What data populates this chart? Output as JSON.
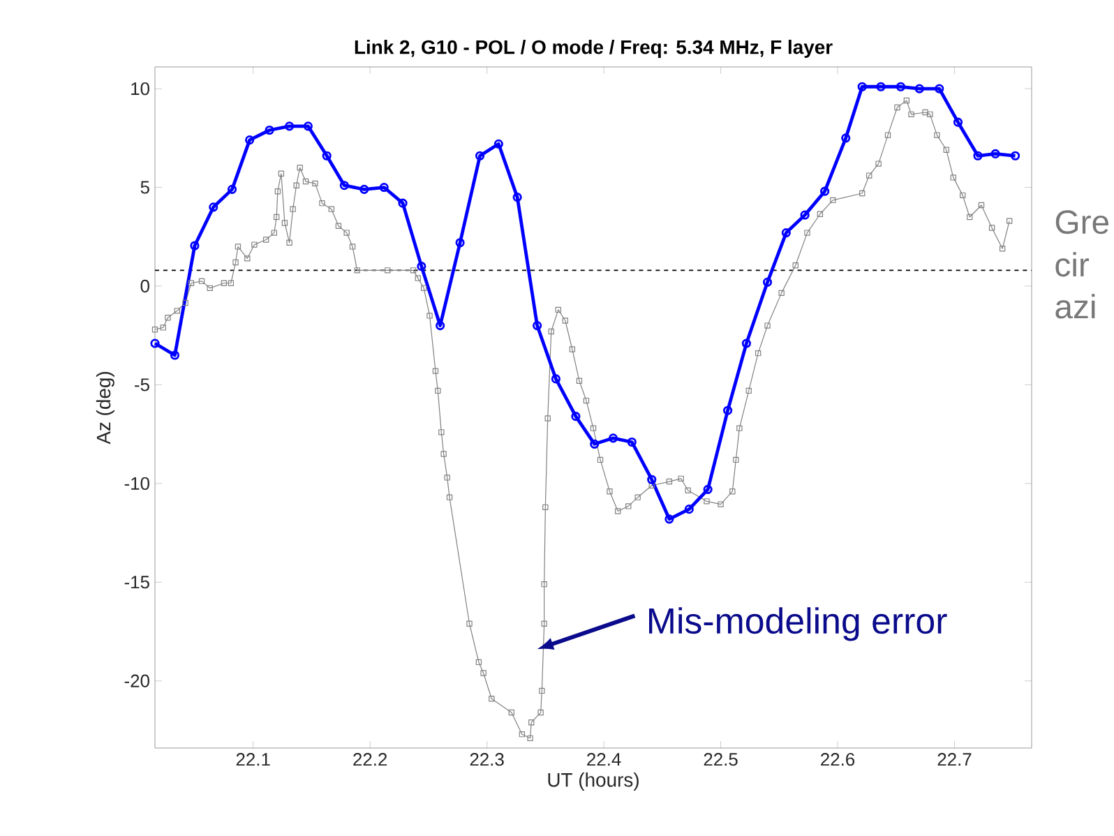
{
  "chart_data": {
    "type": "line",
    "title": "Link 2, G10 - POL / O mode / Freq: 5.34 MHz, F layer",
    "xlabel": "UT (hours)",
    "ylabel": "Az (deg)",
    "xlim": [
      22.016,
      22.766
    ],
    "ylim": [
      -23.4,
      11.1
    ],
    "xticks": [
      22.1,
      22.2,
      22.3,
      22.4,
      22.5,
      22.6,
      22.7
    ],
    "yticks": [
      -20,
      -15,
      -10,
      -5,
      0,
      5,
      10
    ],
    "grid": false,
    "line_style": "solid",
    "ref_lines": [
      {
        "axis": "y",
        "value": 0.8,
        "color": "#000000",
        "line_style": "dashed"
      }
    ],
    "annotations": [
      "Mis-modeling error",
      "Gre",
      "cir",
      "azi"
    ],
    "series": [
      {
        "color": "#808080",
        "marker": "square",
        "x": [
          22.016,
          22.023,
          22.027,
          22.035,
          22.042,
          22.047,
          22.056,
          22.063,
          22.075,
          22.081,
          22.085,
          22.087,
          22.095,
          22.101,
          22.111,
          22.118,
          22.12,
          22.121,
          22.124,
          22.127,
          22.131,
          22.134,
          22.137,
          22.14,
          22.145,
          22.153,
          22.159,
          22.167,
          22.173,
          22.18,
          22.185,
          22.189,
          22.215,
          22.237,
          22.241,
          22.246,
          22.251,
          22.256,
          22.258,
          22.261,
          22.263,
          22.266,
          22.268,
          22.285,
          22.293,
          22.297,
          22.304,
          22.321,
          22.33,
          22.337,
          22.338,
          22.346,
          22.347,
          22.349,
          22.349,
          22.35,
          22.352,
          22.355,
          22.361,
          22.367,
          22.373,
          22.379,
          22.385,
          22.391,
          22.397,
          22.405,
          22.412,
          22.421,
          22.429,
          22.441,
          22.456,
          22.466,
          22.472,
          22.488,
          22.5,
          22.51,
          22.513,
          22.516,
          22.524,
          22.532,
          22.54,
          22.552,
          22.564,
          22.574,
          22.585,
          22.596,
          22.621,
          22.627,
          22.635,
          22.643,
          22.651,
          22.659,
          22.663,
          22.675,
          22.679,
          22.685,
          22.693,
          22.699,
          22.707,
          22.713,
          22.723,
          22.732,
          22.741,
          22.747
        ],
        "values": [
          -2.2,
          -2.1,
          -1.6,
          -1.25,
          -0.85,
          0.15,
          0.25,
          -0.1,
          0.15,
          0.15,
          1.2,
          2.0,
          1.4,
          2.1,
          2.35,
          2.7,
          3.5,
          4.8,
          5.7,
          3.2,
          2.2,
          3.9,
          5.1,
          6.0,
          5.3,
          5.2,
          4.2,
          3.9,
          3.05,
          2.7,
          2.0,
          0.8,
          0.8,
          0.8,
          0.4,
          -0.1,
          -1.5,
          -4.3,
          -5.3,
          -7.4,
          -8.5,
          -9.7,
          -10.7,
          -17.1,
          -19.05,
          -19.6,
          -20.9,
          -21.6,
          -22.7,
          -22.9,
          -22.1,
          -21.6,
          -20.5,
          -17.1,
          -15.1,
          -11.2,
          -6.7,
          -2.3,
          -1.2,
          -1.75,
          -3.2,
          -4.8,
          -5.8,
          -7.2,
          -8.8,
          -10.4,
          -11.4,
          -11.15,
          -10.7,
          -10.1,
          -9.9,
          -9.75,
          -10.35,
          -10.9,
          -11.05,
          -10.4,
          -8.8,
          -7.2,
          -5.3,
          -3.4,
          -2.0,
          -0.35,
          1.05,
          2.7,
          3.65,
          4.35,
          4.7,
          5.6,
          6.2,
          7.65,
          9.05,
          9.4,
          8.7,
          8.8,
          8.7,
          7.65,
          6.9,
          5.5,
          4.6,
          3.5,
          4.1,
          2.95,
          1.9,
          3.3
        ]
      },
      {
        "color": "#0000ff",
        "marker": "circle",
        "x": [
          22.016,
          22.033,
          22.05,
          22.066,
          22.082,
          22.097,
          22.114,
          22.131,
          22.147,
          22.163,
          22.178,
          22.195,
          22.212,
          22.228,
          22.244,
          22.26,
          22.277,
          22.294,
          22.31,
          22.326,
          22.343,
          22.359,
          22.376,
          22.392,
          22.408,
          22.424,
          22.441,
          22.456,
          22.473,
          22.489,
          22.506,
          22.522,
          22.54,
          22.556,
          22.572,
          22.589,
          22.607,
          22.621,
          22.637,
          22.654,
          22.67,
          22.687,
          22.703,
          22.72,
          22.735,
          22.752
        ],
        "values": [
          -2.9,
          -3.5,
          2.05,
          4.0,
          4.9,
          7.4,
          7.9,
          8.1,
          8.1,
          6.6,
          5.1,
          4.9,
          5.0,
          4.2,
          1.0,
          -2.0,
          2.2,
          6.6,
          7.2,
          4.5,
          -2.0,
          -4.7,
          -6.6,
          -8.0,
          -7.7,
          -7.9,
          -9.8,
          -11.8,
          -11.3,
          -10.3,
          -6.3,
          -2.9,
          0.2,
          2.7,
          3.6,
          4.8,
          7.5,
          10.1,
          10.1,
          10.1,
          10.0,
          10.0,
          8.3,
          6.6,
          6.7,
          6.6
        ]
      }
    ]
  }
}
